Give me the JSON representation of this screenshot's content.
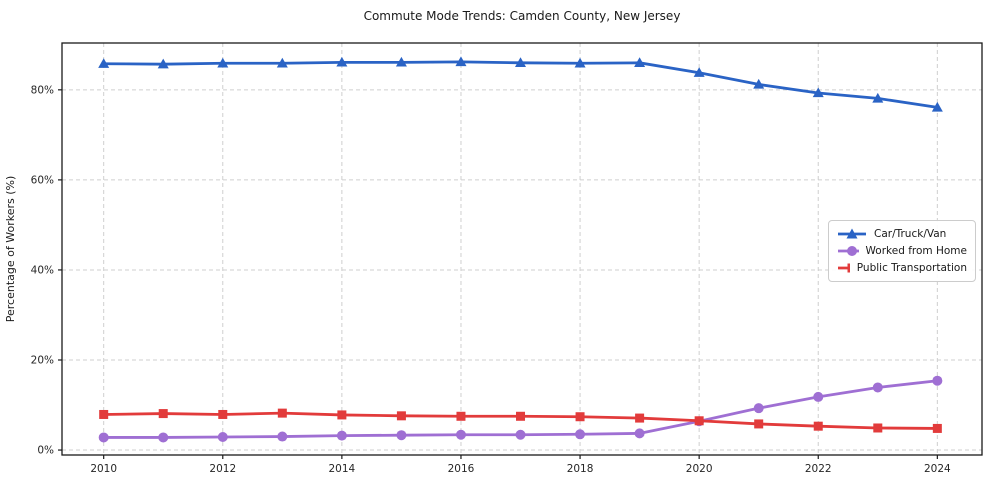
{
  "chart_data": {
    "type": "line",
    "title": "Commute Mode Trends: Camden County, New Jersey",
    "xlabel": "",
    "ylabel": "Percentage of Workers (%)",
    "x": [
      2010,
      2011,
      2012,
      2013,
      2014,
      2015,
      2016,
      2017,
      2018,
      2019,
      2020,
      2021,
      2022,
      2023,
      2024
    ],
    "xticks": [
      2010,
      2012,
      2014,
      2016,
      2018,
      2020,
      2022,
      2024
    ],
    "xtick_labels": [
      "2010",
      "2012",
      "2014",
      "2016",
      "2018",
      "2020",
      "2022",
      "2024"
    ],
    "yticks": [
      0,
      20,
      40,
      60,
      80
    ],
    "ytick_labels": [
      "0%",
      "20%",
      "40%",
      "60%",
      "80%"
    ],
    "xlim": [
      2009.3,
      2024.75
    ],
    "ylim": [
      -1.1,
      90.4
    ],
    "grid": true,
    "grid_style": "dashed",
    "legend_position": "middle-right",
    "series": [
      {
        "name": "Car/Truck/Van",
        "color": "#2a63c5",
        "marker": "triangle",
        "values": [
          85.8,
          85.7,
          85.9,
          85.9,
          86.1,
          86.1,
          86.2,
          86.0,
          85.9,
          86.0,
          83.8,
          81.2,
          79.3,
          78.1,
          76.1
        ]
      },
      {
        "name": "Worked from Home",
        "color": "#9f6fd3",
        "marker": "circle",
        "values": [
          2.8,
          2.8,
          2.9,
          3.0,
          3.2,
          3.3,
          3.4,
          3.4,
          3.5,
          3.7,
          6.4,
          9.3,
          11.8,
          13.9,
          15.4
        ]
      },
      {
        "name": "Public Transportation",
        "color": "#e23b3b",
        "marker": "square",
        "values": [
          7.9,
          8.1,
          7.9,
          8.2,
          7.8,
          7.6,
          7.5,
          7.5,
          7.4,
          7.1,
          6.5,
          5.8,
          5.3,
          4.9,
          4.8
        ]
      }
    ],
    "colors": {
      "grid": "#cfcfcf",
      "spine": "#1a1a1a",
      "background": "#ffffff",
      "text": "#1a1a1a"
    }
  }
}
